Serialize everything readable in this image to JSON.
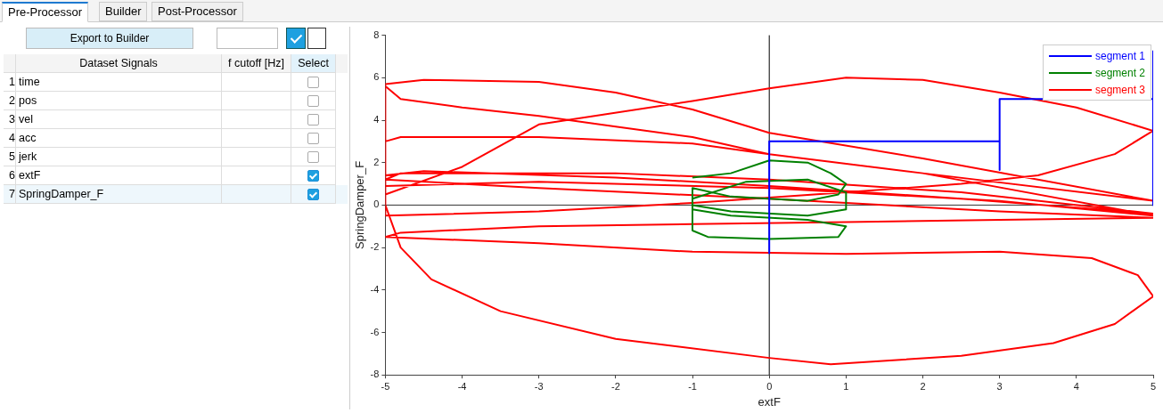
{
  "chart_data": {
    "type": "line",
    "xlabel": "extF",
    "ylabel": "SpringDamper_F",
    "xlim": [
      -5,
      5
    ],
    "xticks": [
      -5,
      -4,
      -3,
      -2,
      -1,
      0,
      1,
      2,
      3,
      4,
      5
    ],
    "ylim": [
      -8,
      8
    ],
    "yticks": [
      -8,
      -6,
      -4,
      -2,
      0,
      2,
      4,
      6,
      8
    ],
    "legend": "top right",
    "ref_lines": [
      {
        "axis": "x",
        "value": 0,
        "color": "#000000"
      },
      {
        "axis": "y",
        "value": 0,
        "color": "#333333"
      }
    ],
    "annotations": [
      "Pre-Processor",
      "Builder",
      "Post-Processor",
      "Export to Builder",
      "Dataset Signals",
      "f cutoff [Hz]",
      "Select",
      "1",
      "time",
      "2",
      "pos",
      "3",
      "vel",
      "4",
      "acc",
      "5",
      "jerk",
      "6",
      "extF",
      "7",
      "SpringDamper_F"
    ],
    "series": [
      {
        "name": "segment 1",
        "color": "#0000ff",
        "x": [
          0,
          0,
          3,
          3,
          3,
          5,
          5,
          5
        ],
        "values": [
          -2.3,
          3,
          3,
          1.65,
          5,
          5,
          7.25,
          0
        ]
      },
      {
        "name": "segment 2",
        "color": "#008000",
        "x": [
          -1,
          -0.5,
          0,
          0.5,
          0.8,
          1,
          0.9,
          0.5,
          -0.5,
          -1,
          -1,
          -0.5,
          0.5,
          1,
          1,
          0.5,
          -0.3,
          -1,
          -1,
          -0.8,
          0,
          0.9,
          1,
          0.5,
          -0.5,
          -1
        ],
        "values": [
          1.3,
          1.5,
          2.1,
          2,
          1.5,
          1,
          0.5,
          0.2,
          0.4,
          0.8,
          0,
          -0.3,
          -0.5,
          -0.2,
          0.6,
          1.2,
          1.1,
          0.3,
          -1.2,
          -1.5,
          -1.6,
          -1.5,
          -1,
          -0.7,
          -0.5,
          -0.2
        ]
      },
      {
        "name": "segment 3",
        "color": "#ff0000",
        "x": [
          -5,
          -4.8,
          -4.4,
          -3.5,
          -2,
          0,
          0.8,
          2.5,
          3.7,
          4.5,
          5,
          4.8,
          4.2,
          3,
          1,
          -1,
          -3,
          -5,
          -4.8,
          -3,
          -1,
          1,
          3,
          5,
          3,
          0,
          -3,
          -5,
          -4.8,
          -2,
          0,
          2.5,
          5,
          2.5,
          0,
          -2,
          -4.5,
          -5,
          -5,
          -4,
          -3,
          -1,
          0,
          1,
          2,
          3,
          4,
          5,
          4.5,
          3.5,
          2.5,
          1,
          -1,
          -3,
          -5,
          -5,
          -4.5,
          -3,
          -2,
          -1,
          0,
          2,
          5,
          2,
          0,
          -1,
          -2,
          -3,
          -4,
          -4.8,
          -5,
          -5,
          -4.8,
          -3,
          -1,
          0,
          2,
          5,
          3,
          0,
          -3,
          -5
        ],
        "values": [
          0,
          -2,
          -3.5,
          -5,
          -6.3,
          -7.2,
          -7.5,
          -7.1,
          -6.5,
          -5.6,
          -4.3,
          -3.3,
          -2.5,
          -2.2,
          -2.3,
          -2.2,
          -1.8,
          -1.5,
          -1.3,
          -1,
          -0.9,
          -0.8,
          -0.7,
          -0.6,
          -0.3,
          0.3,
          0.8,
          1.2,
          1.5,
          1.5,
          1.2,
          0.6,
          -0.4,
          0.3,
          0.9,
          1.3,
          1.6,
          1.4,
          0.5,
          1.8,
          3.8,
          4.9,
          5.5,
          6,
          5.9,
          5.3,
          4.6,
          3.5,
          2.4,
          1.4,
          1,
          0.6,
          0.1,
          -0.3,
          -0.5,
          5.7,
          5.9,
          5.8,
          5.3,
          4.5,
          3.4,
          2.2,
          0.2,
          1.5,
          2.4,
          3.2,
          3.7,
          4.2,
          4.6,
          5,
          5.6,
          3,
          3.2,
          3.2,
          2.9,
          2.4,
          1.5,
          -0.5,
          0.2,
          0.8,
          1.1,
          0.9
        ]
      }
    ]
  }
}
